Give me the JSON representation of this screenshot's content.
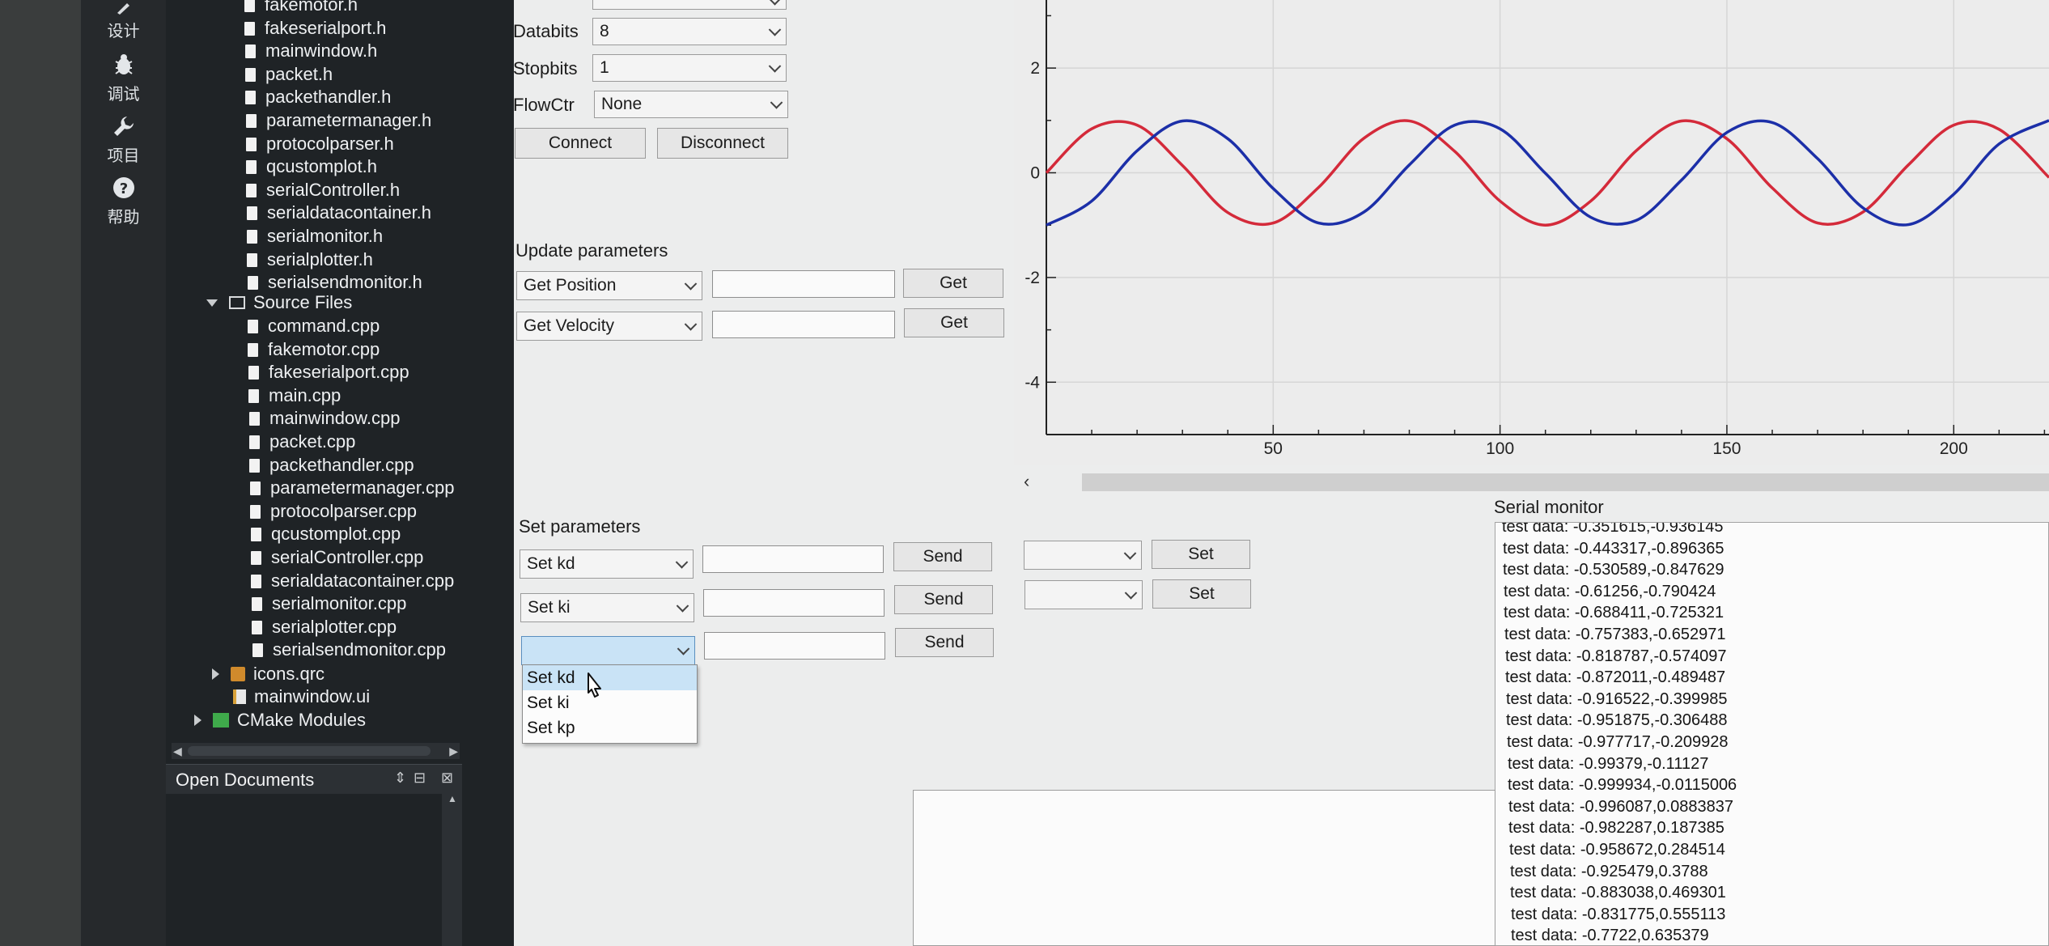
{
  "modebar": {
    "items": [
      {
        "label": "设计",
        "icon": "pencil-icon"
      },
      {
        "label": "调试",
        "icon": "bug-icon"
      },
      {
        "label": "项目",
        "icon": "wrench-icon"
      },
      {
        "label": "帮助",
        "icon": "help-icon"
      }
    ]
  },
  "tree": {
    "header_files": [
      "fakemotor.h",
      "fakeserialport.h",
      "mainwindow.h",
      "packet.h",
      "packethandler.h",
      "parametermanager.h",
      "protocolparser.h",
      "qcustomplot.h",
      "serialController.h",
      "serialdatacontainer.h",
      "serialmonitor.h",
      "serialplotter.h",
      "serialsendmonitor.h"
    ],
    "source_folder": "Source Files",
    "source_files": [
      "command.cpp",
      "fakemotor.cpp",
      "fakeserialport.cpp",
      "main.cpp",
      "mainwindow.cpp",
      "packet.cpp",
      "packethandler.cpp",
      "parametermanager.cpp",
      "protocolparser.cpp",
      "qcustomplot.cpp",
      "serialController.cpp",
      "serialdatacontainer.cpp",
      "serialmonitor.cpp",
      "serialplotter.cpp",
      "serialsendmonitor.cpp"
    ],
    "icons_qrc": "icons.qrc",
    "mainwindow_ui": "mainwindow.ui",
    "cmake_modules": "CMake Modules"
  },
  "open_documents": {
    "title": "Open Documents"
  },
  "serial": {
    "databits_label": "Databits",
    "databits_value": "8",
    "stopbits_label": "Stopbits",
    "stopbits_value": "1",
    "flowctr_label": "FlowCtr",
    "flowctr_value": "None",
    "connect_label": "Connect",
    "disconnect_label": "Disconnect"
  },
  "update_params": {
    "title": "Update parameters",
    "rows": [
      {
        "select": "Get Position",
        "button": "Get"
      },
      {
        "select": "Get Velocity",
        "button": "Get"
      }
    ]
  },
  "set_params": {
    "title": "Set parameters",
    "rows": [
      {
        "select": "Set kd",
        "button": "Send",
        "set_button": "Set"
      },
      {
        "select": "Set ki",
        "button": "Send",
        "set_button": "Set"
      },
      {
        "select": "",
        "button": "Send"
      }
    ],
    "dropdown_options": [
      "Set kd",
      "Set ki",
      "Set kp"
    ],
    "dropdown_highlighted": "Set kd"
  },
  "chart_data": {
    "type": "line",
    "x_ticks": [
      "50",
      "100",
      "150",
      "200"
    ],
    "y_ticks": [
      "2",
      "0",
      "-2",
      "-4"
    ],
    "xlim": [
      0,
      221
    ],
    "ylim": [
      -5,
      3.3
    ],
    "grid": true,
    "series": [
      {
        "color": "#d42a3a",
        "x": [
          0,
          10,
          20,
          30,
          40,
          50,
          60,
          70,
          80,
          90,
          100,
          110,
          120,
          130,
          140,
          150,
          160,
          170,
          180,
          190,
          200,
          210,
          221
        ],
        "y": [
          0.0,
          0.84,
          0.91,
          0.14,
          -0.76,
          -0.96,
          -0.28,
          0.66,
          0.99,
          0.41,
          -0.54,
          -1.0,
          -0.54,
          0.42,
          0.99,
          0.65,
          -0.29,
          -0.96,
          -0.75,
          0.15,
          0.91,
          0.83,
          -0.09
        ]
      },
      {
        "color": "#1c2fa8",
        "x": [
          0,
          10,
          20,
          30,
          40,
          50,
          60,
          70,
          80,
          90,
          100,
          110,
          120,
          130,
          140,
          150,
          160,
          170,
          180,
          190,
          200,
          210,
          221
        ],
        "y": [
          -1.0,
          -0.54,
          0.42,
          0.99,
          0.65,
          -0.3,
          -0.96,
          -0.75,
          0.15,
          0.91,
          0.84,
          -0.01,
          -0.85,
          -0.91,
          -0.14,
          0.77,
          0.96,
          0.27,
          -0.67,
          -0.99,
          -0.41,
          0.55,
          1.0
        ]
      }
    ]
  },
  "monitor": {
    "title": "Serial monitor",
    "lines": [
      "test data: -0.351615,-0.936145",
      "test data: -0.443317,-0.896365",
      "test data: -0.530589,-0.847629",
      "test data: -0.61256,-0.790424",
      "test data: -0.688411,-0.725321",
      "test data: -0.757383,-0.652971",
      "test data: -0.818787,-0.574097",
      "test data: -0.872011,-0.489487",
      "test data: -0.916522,-0.399985",
      "test data: -0.951875,-0.306488",
      "test data: -0.977717,-0.209928",
      "test data: -0.99379,-0.11127",
      "test data: -0.999934,-0.0115006",
      "test data: -0.996087,0.0883837",
      "test data: -0.982287,0.187385",
      "test data: -0.958672,0.284514",
      "test data: -0.925479,0.3788",
      "test data: -0.883038,0.469301",
      "test data: -0.831775,0.555113",
      "test data: -0.7722,0.635379"
    ]
  }
}
